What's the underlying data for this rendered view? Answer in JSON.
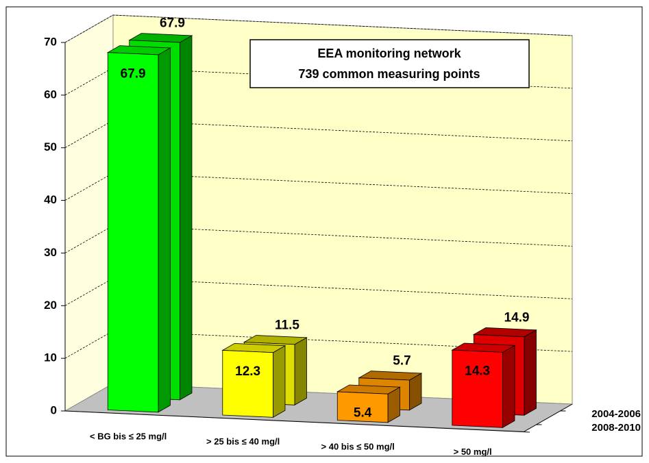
{
  "chart_data": {
    "type": "bar3d",
    "annotation": [
      "EEA monitoring network",
      "739 common measuring points"
    ],
    "categories": [
      "< BG bis ≤ 25 mg/l",
      "> 25 bis ≤ 40 mg/l",
      "> 40 bis ≤ 50 mg/l",
      "> 50 mg/l"
    ],
    "colors": [
      "#00ff00",
      "#ffff00",
      "#ff9900",
      "#ff0000"
    ],
    "series": [
      {
        "name": "2008-2010",
        "values": [
          67.9,
          12.3,
          5.4,
          14.3
        ]
      },
      {
        "name": "2004-2006",
        "values": [
          67.9,
          11.5,
          5.7,
          14.9
        ]
      }
    ],
    "ylim": [
      0,
      70
    ],
    "yticks": [
      0,
      10,
      20,
      30,
      40,
      50,
      60,
      70
    ],
    "grid": true
  }
}
